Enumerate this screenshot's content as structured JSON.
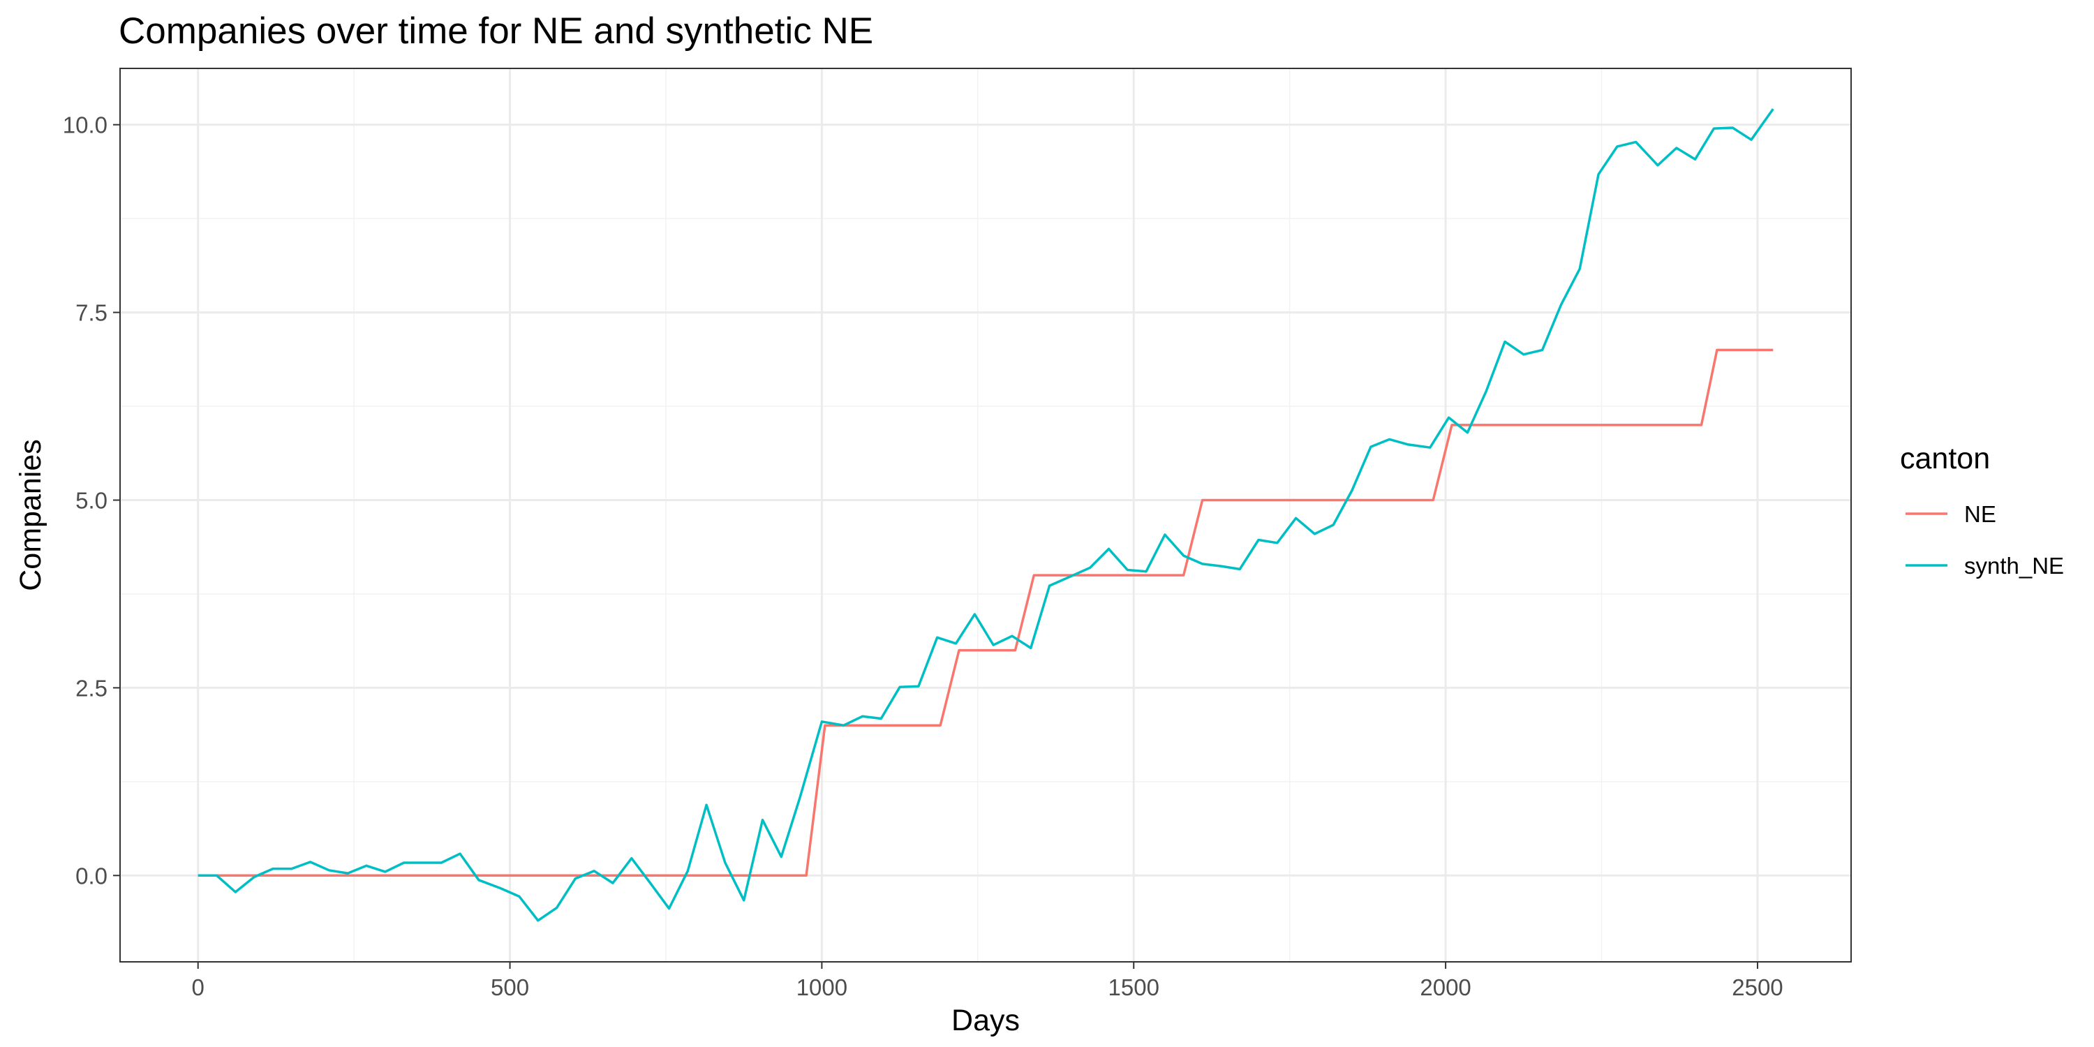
{
  "chart_data": {
    "type": "line",
    "title": "Companies over time for NE and synthetic NE",
    "xlabel": "Days",
    "ylabel": "Companies",
    "xlim": [
      -125,
      2650
    ],
    "ylim": [
      -1.15,
      10.75
    ],
    "xticks": [
      0,
      500,
      1000,
      1500,
      2000,
      2500
    ],
    "xtick_labels": [
      "0",
      "500",
      "1000",
      "1500",
      "2000",
      "2500"
    ],
    "yticks": [
      0,
      2.5,
      5,
      7.5,
      10
    ],
    "ytick_labels": [
      "0.0",
      "2.5",
      "5.0",
      "7.5",
      "10.0"
    ],
    "grid": true,
    "legend": {
      "title": "canton",
      "placement": "right",
      "entries": [
        "NE",
        "synth_NE"
      ]
    },
    "series": [
      {
        "name": "NE",
        "color": "#F8766D",
        "points": [
          [
            0,
            0
          ],
          [
            975,
            0
          ],
          [
            1005,
            2
          ],
          [
            1190,
            2
          ],
          [
            1220,
            3
          ],
          [
            1310,
            3
          ],
          [
            1340,
            4
          ],
          [
            1580,
            4
          ],
          [
            1610,
            5
          ],
          [
            1980,
            5
          ],
          [
            2010,
            6
          ],
          [
            2410,
            6
          ],
          [
            2435,
            7
          ],
          [
            2525,
            7
          ]
        ]
      },
      {
        "name": "synth_NE",
        "color": "#00BFC4",
        "points": [
          [
            0,
            0
          ],
          [
            30,
            0
          ],
          [
            60,
            -0.22
          ],
          [
            90,
            -0.02
          ],
          [
            120,
            0.09
          ],
          [
            150,
            0.09
          ],
          [
            180,
            0.18
          ],
          [
            210,
            0.07
          ],
          [
            240,
            0.03
          ],
          [
            270,
            0.13
          ],
          [
            300,
            0.05
          ],
          [
            330,
            0.17
          ],
          [
            360,
            0.17
          ],
          [
            390,
            0.17
          ],
          [
            420,
            0.29
          ],
          [
            450,
            -0.06
          ],
          [
            485,
            -0.17
          ],
          [
            515,
            -0.28
          ],
          [
            545,
            -0.6
          ],
          [
            575,
            -0.43
          ],
          [
            605,
            -0.04
          ],
          [
            635,
            0.06
          ],
          [
            665,
            -0.1
          ],
          [
            695,
            0.23
          ],
          [
            725,
            -0.1
          ],
          [
            755,
            -0.44
          ],
          [
            785,
            0.06
          ],
          [
            815,
            0.94
          ],
          [
            845,
            0.17
          ],
          [
            875,
            -0.33
          ],
          [
            905,
            0.74
          ],
          [
            935,
            0.25
          ],
          [
            965,
            1.04
          ],
          [
            1000,
            2.05
          ],
          [
            1035,
            2.0
          ],
          [
            1065,
            2.12
          ],
          [
            1095,
            2.09
          ],
          [
            1125,
            2.51
          ],
          [
            1155,
            2.52
          ],
          [
            1185,
            3.17
          ],
          [
            1215,
            3.09
          ],
          [
            1245,
            3.48
          ],
          [
            1275,
            3.07
          ],
          [
            1305,
            3.19
          ],
          [
            1335,
            3.03
          ],
          [
            1365,
            3.86
          ],
          [
            1395,
            3.97
          ],
          [
            1430,
            4.1
          ],
          [
            1460,
            4.35
          ],
          [
            1490,
            4.07
          ],
          [
            1520,
            4.05
          ],
          [
            1550,
            4.54
          ],
          [
            1580,
            4.26
          ],
          [
            1610,
            4.15
          ],
          [
            1640,
            4.12
          ],
          [
            1670,
            4.08
          ],
          [
            1700,
            4.47
          ],
          [
            1730,
            4.43
          ],
          [
            1760,
            4.76
          ],
          [
            1790,
            4.55
          ],
          [
            1820,
            4.67
          ],
          [
            1850,
            5.13
          ],
          [
            1880,
            5.71
          ],
          [
            1910,
            5.81
          ],
          [
            1940,
            5.74
          ],
          [
            1975,
            5.7
          ],
          [
            2005,
            6.1
          ],
          [
            2035,
            5.9
          ],
          [
            2065,
            6.45
          ],
          [
            2095,
            7.11
          ],
          [
            2125,
            6.94
          ],
          [
            2155,
            7.0
          ],
          [
            2185,
            7.6
          ],
          [
            2215,
            8.08
          ],
          [
            2245,
            9.34
          ],
          [
            2275,
            9.71
          ],
          [
            2305,
            9.77
          ],
          [
            2340,
            9.46
          ],
          [
            2370,
            9.69
          ],
          [
            2400,
            9.54
          ],
          [
            2430,
            9.95
          ],
          [
            2460,
            9.96
          ],
          [
            2490,
            9.8
          ],
          [
            2525,
            10.21
          ]
        ]
      }
    ]
  }
}
